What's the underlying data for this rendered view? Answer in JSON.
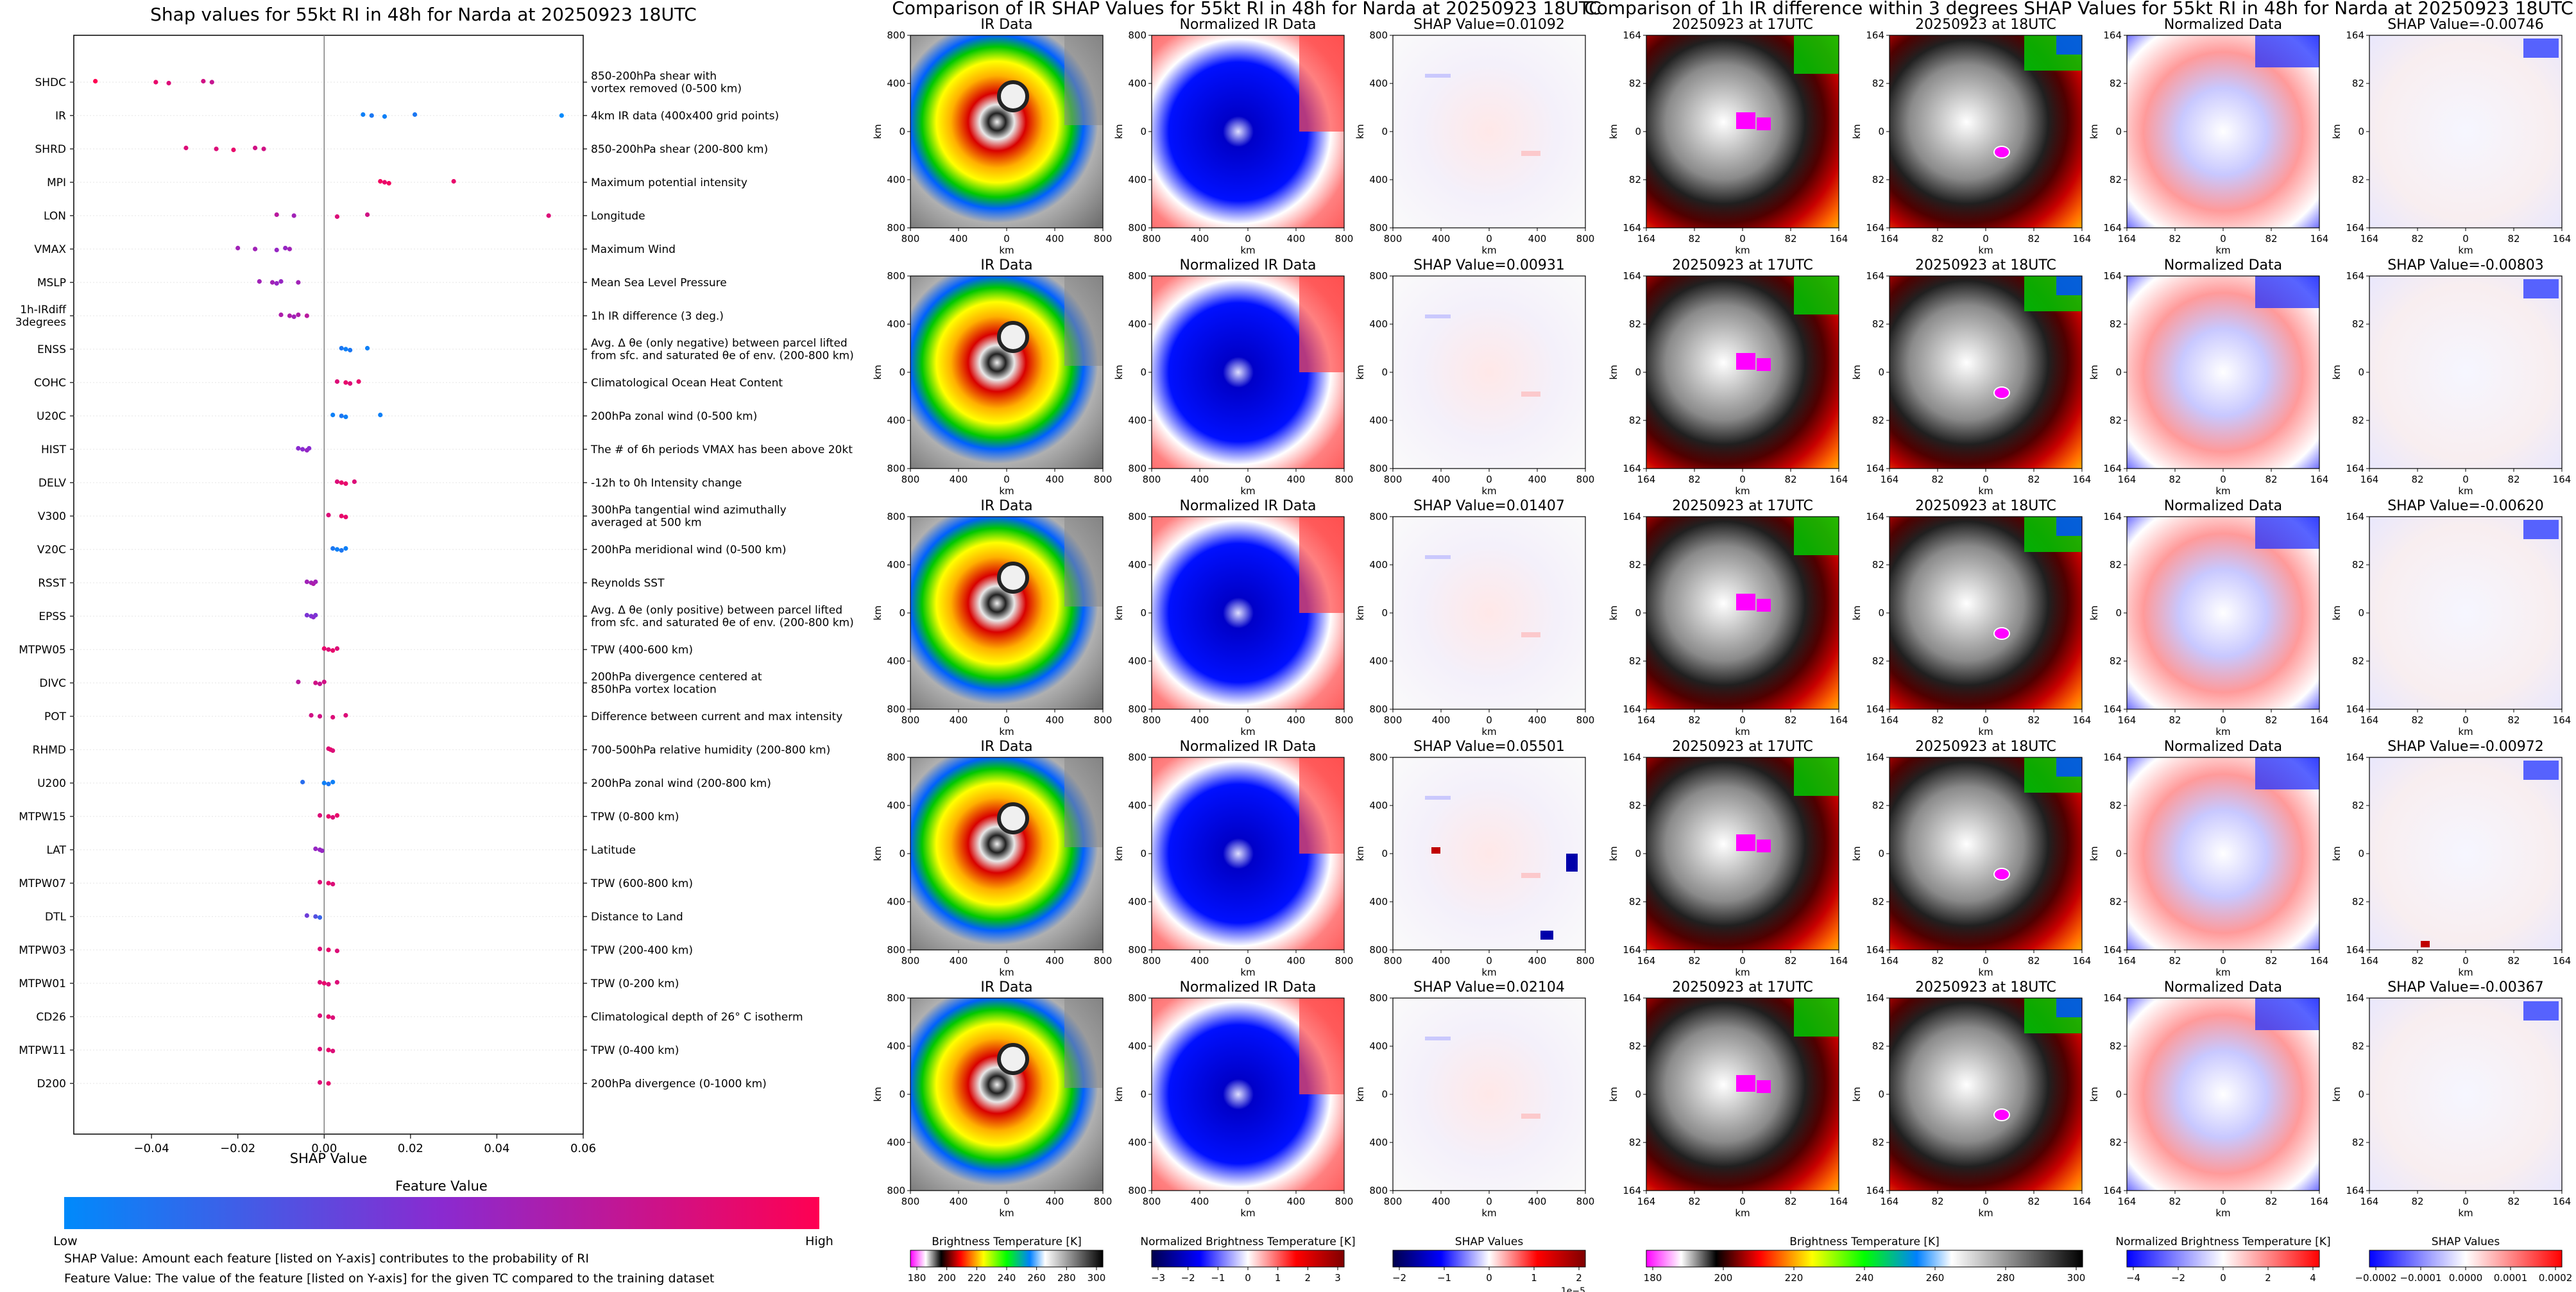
{
  "summary": {
    "title": "Shap values for 55kt RI in 48h for Narda at 20250923 18UTC",
    "xlabel": "SHAP Value",
    "colorbar_title": "Feature Value",
    "colorbar_low": "Low",
    "colorbar_high": "High",
    "note1": "SHAP Value: Amount each feature [listed on Y-axis] contributes to the probability of RI",
    "note2": "Feature Value: The value of the feature [listed on Y-axis] for the given TC compared to the training dataset",
    "colors": {
      "low": "#008afb",
      "mid": "#8a2ad0",
      "high": "#ff0052"
    }
  },
  "chart_data": [
    {
      "type": "scatter",
      "title": "Shap values for 55kt RI in 48h for Narda at 20250923 18UTC",
      "xlabel": "SHAP Value",
      "ylabel": "",
      "xlim": [
        -0.058,
        0.06
      ],
      "xticks": [
        "−0.04",
        "−0.02",
        "0.00",
        "0.02",
        "0.04",
        "0.06"
      ],
      "xtick_values": [
        -0.04,
        -0.02,
        0.0,
        0.02,
        0.04,
        0.06
      ],
      "features": [
        {
          "name": "SHDC",
          "desc": "850-200hPa shear with\nvortex removed (0-500 km)",
          "points": [
            [
              -0.053,
              1.0
            ],
            [
              -0.039,
              0.9
            ],
            [
              -0.036,
              0.85
            ],
            [
              -0.028,
              0.8
            ],
            [
              -0.026,
              0.75
            ]
          ]
        },
        {
          "name": "IR",
          "desc": "4km IR data (400x400 grid points)",
          "points": [
            [
              0.009,
              0.05
            ],
            [
              0.011,
              0.1
            ],
            [
              0.014,
              0.05
            ],
            [
              0.021,
              0.1
            ],
            [
              0.055,
              0.0
            ]
          ]
        },
        {
          "name": "SHRD",
          "desc": "850-200hPa shear (200-800 km)",
          "points": [
            [
              -0.032,
              0.85
            ],
            [
              -0.025,
              0.85
            ],
            [
              -0.021,
              0.9
            ],
            [
              -0.016,
              0.8
            ],
            [
              -0.014,
              0.8
            ]
          ]
        },
        {
          "name": "MPI",
          "desc": "Maximum potential intensity",
          "points": [
            [
              0.013,
              0.95
            ],
            [
              0.014,
              0.9
            ],
            [
              0.015,
              0.95
            ],
            [
              0.03,
              0.9
            ]
          ]
        },
        {
          "name": "LON",
          "desc": "Longitude",
          "points": [
            [
              -0.011,
              0.7
            ],
            [
              -0.007,
              0.6
            ],
            [
              0.003,
              0.85
            ],
            [
              0.01,
              0.8
            ],
            [
              0.052,
              0.85
            ]
          ]
        },
        {
          "name": "VMAX",
          "desc": "Maximum Wind",
          "points": [
            [
              -0.02,
              0.6
            ],
            [
              -0.016,
              0.6
            ],
            [
              -0.011,
              0.55
            ],
            [
              -0.009,
              0.55
            ],
            [
              -0.008,
              0.6
            ]
          ]
        },
        {
          "name": "MSLP",
          "desc": "Mean Sea Level Pressure",
          "points": [
            [
              -0.015,
              0.6
            ],
            [
              -0.012,
              0.6
            ],
            [
              -0.011,
              0.55
            ],
            [
              -0.01,
              0.55
            ],
            [
              -0.006,
              0.6
            ]
          ]
        },
        {
          "name": "1h-IRdiff\n3degrees",
          "desc": "1h IR difference (3 deg.)",
          "points": [
            [
              -0.01,
              0.65
            ],
            [
              -0.008,
              0.65
            ],
            [
              -0.007,
              0.6
            ],
            [
              -0.006,
              0.65
            ],
            [
              -0.004,
              0.7
            ]
          ]
        },
        {
          "name": "ENSS",
          "desc": "Avg. Δ θe (only negative) between parcel lifted\nfrom sfc. and saturated θe of env. (200-800 km)",
          "points": [
            [
              0.004,
              0.1
            ],
            [
              0.005,
              0.05
            ],
            [
              0.006,
              0.1
            ],
            [
              0.01,
              0.05
            ]
          ]
        },
        {
          "name": "COHC",
          "desc": "Climatological Ocean Heat Content",
          "points": [
            [
              0.003,
              0.85
            ],
            [
              0.005,
              0.9
            ],
            [
              0.006,
              0.85
            ],
            [
              0.008,
              0.9
            ]
          ]
        },
        {
          "name": "U20C",
          "desc": "200hPa zonal wind (0-500 km)",
          "points": [
            [
              0.002,
              0.05
            ],
            [
              0.004,
              0.1
            ],
            [
              0.005,
              0.05
            ],
            [
              0.013,
              0.05
            ]
          ]
        },
        {
          "name": "HIST",
          "desc": "The # of 6h periods VMAX has been above 20kt",
          "points": [
            [
              -0.006,
              0.5
            ],
            [
              -0.005,
              0.5
            ],
            [
              -0.004,
              0.55
            ],
            [
              -0.0035,
              0.5
            ]
          ]
        },
        {
          "name": "DELV",
          "desc": "-12h to 0h Intensity change",
          "points": [
            [
              0.003,
              0.85
            ],
            [
              0.004,
              0.9
            ],
            [
              0.005,
              0.9
            ],
            [
              0.007,
              0.85
            ]
          ]
        },
        {
          "name": "V300",
          "desc": "300hPa tangential wind azimuthally\naveraged at 500 km",
          "points": [
            [
              0.001,
              0.85
            ],
            [
              0.004,
              0.9
            ],
            [
              0.005,
              0.9
            ]
          ]
        },
        {
          "name": "V20C",
          "desc": "200hPa meridional wind (0-500 km)",
          "points": [
            [
              0.002,
              0.1
            ],
            [
              0.003,
              0.05
            ],
            [
              0.004,
              0.1
            ],
            [
              0.005,
              0.05
            ]
          ]
        },
        {
          "name": "RSST",
          "desc": "Reynolds SST",
          "points": [
            [
              -0.004,
              0.6
            ],
            [
              -0.003,
              0.6
            ],
            [
              -0.0025,
              0.65
            ],
            [
              -0.002,
              0.6
            ]
          ]
        },
        {
          "name": "EPSS",
          "desc": "Avg. Δ θe (only positive) between parcel lifted\nfrom sfc. and saturated θe of env. (200-800 km)",
          "points": [
            [
              -0.004,
              0.45
            ],
            [
              -0.003,
              0.45
            ],
            [
              -0.0025,
              0.5
            ],
            [
              -0.002,
              0.45
            ]
          ]
        },
        {
          "name": "MTPW05",
          "desc": "TPW (400-600 km)",
          "points": [
            [
              0.0,
              0.9
            ],
            [
              0.001,
              0.85
            ],
            [
              0.002,
              0.9
            ],
            [
              0.003,
              0.85
            ]
          ]
        },
        {
          "name": "DIVC",
          "desc": "200hPa divergence centered at\n850hPa vortex location",
          "points": [
            [
              -0.006,
              0.7
            ],
            [
              -0.002,
              0.8
            ],
            [
              -0.001,
              0.75
            ],
            [
              0.0,
              0.8
            ]
          ]
        },
        {
          "name": "POT",
          "desc": "Difference between current and max intensity",
          "points": [
            [
              -0.003,
              0.8
            ],
            [
              -0.001,
              0.8
            ],
            [
              0.002,
              0.85
            ],
            [
              0.005,
              0.85
            ]
          ]
        },
        {
          "name": "RHMD",
          "desc": "700-500hPa relative humidity (200-800 km)",
          "points": [
            [
              0.001,
              0.85
            ],
            [
              0.0015,
              0.9
            ],
            [
              0.002,
              0.85
            ]
          ]
        },
        {
          "name": "U200",
          "desc": "200hPa zonal wind (200-800 km)",
          "points": [
            [
              -0.005,
              0.15
            ],
            [
              0.0,
              0.05
            ],
            [
              0.001,
              0.1
            ],
            [
              0.002,
              0.05
            ]
          ]
        },
        {
          "name": "MTPW15",
          "desc": "TPW (0-800 km)",
          "points": [
            [
              -0.001,
              0.85
            ],
            [
              0.001,
              0.9
            ],
            [
              0.002,
              0.85
            ],
            [
              0.003,
              0.9
            ]
          ]
        },
        {
          "name": "LAT",
          "desc": "Latitude",
          "points": [
            [
              -0.002,
              0.55
            ],
            [
              -0.001,
              0.55
            ],
            [
              -0.0005,
              0.55
            ]
          ]
        },
        {
          "name": "MTPW07",
          "desc": "TPW (600-800 km)",
          "points": [
            [
              -0.001,
              0.85
            ],
            [
              0.001,
              0.9
            ],
            [
              0.002,
              0.85
            ]
          ]
        },
        {
          "name": "DTL",
          "desc": "Distance to Land",
          "points": [
            [
              -0.004,
              0.4
            ],
            [
              -0.002,
              0.3
            ],
            [
              -0.001,
              0.2
            ]
          ]
        },
        {
          "name": "MTPW03",
          "desc": "TPW (200-400 km)",
          "points": [
            [
              -0.001,
              0.85
            ],
            [
              0.001,
              0.9
            ],
            [
              0.003,
              0.85
            ]
          ]
        },
        {
          "name": "MTPW01",
          "desc": "TPW (0-200 km)",
          "points": [
            [
              -0.001,
              0.85
            ],
            [
              0.0,
              0.9
            ],
            [
              0.001,
              0.85
            ],
            [
              0.003,
              0.85
            ]
          ]
        },
        {
          "name": "CD26",
          "desc": "Climatological depth of 26° C isotherm",
          "points": [
            [
              -0.001,
              0.85
            ],
            [
              0.001,
              0.9
            ],
            [
              0.002,
              0.85
            ]
          ]
        },
        {
          "name": "MTPW11",
          "desc": "TPW (0-400 km)",
          "points": [
            [
              -0.001,
              0.85
            ],
            [
              0.001,
              0.9
            ],
            [
              0.002,
              0.85
            ]
          ]
        },
        {
          "name": "D200",
          "desc": "200hPa divergence (0-1000 km)",
          "points": [
            [
              -0.001,
              0.85
            ],
            [
              0.001,
              0.9
            ]
          ]
        }
      ]
    },
    {
      "type": "heatmap",
      "title": "Comparison of IR SHAP Values for 55kt RI in 48h for Narda at 20250923 18UTC",
      "columns": [
        "IR Data",
        "Normalized IR Data",
        "SHAP Value"
      ],
      "xlabel": "km",
      "ylabel": "km",
      "xticks": [
        "800",
        "400",
        "0",
        "400",
        "800"
      ],
      "yticks": [
        "800",
        "400",
        "0",
        "400",
        "800"
      ],
      "shap_values": [
        "0.01092",
        "0.00931",
        "0.01407",
        "0.05501",
        "0.02104"
      ],
      "shap_prefix": "SHAP Value=",
      "colorbars": [
        {
          "label": "Brightness Temperature [K]",
          "ticks": [
            "180",
            "200",
            "220",
            "240",
            "260",
            "280",
            "300"
          ]
        },
        {
          "label": "Normalized Brightness Temperature [K]",
          "ticks": [
            "−3",
            "−2",
            "−1",
            "0",
            "1",
            "2",
            "3"
          ]
        },
        {
          "label": "SHAP Values",
          "ticks": [
            "−2",
            "−1",
            "0",
            "1",
            "2"
          ],
          "offset": "1e−5"
        }
      ]
    },
    {
      "type": "heatmap",
      "title": "Comparison of 1h IR difference within 3 degrees SHAP Values for 55kt RI in 48h for Narda at 20250923 18UTC",
      "columns": [
        "20250923 at 17UTC",
        "20250923 at 18UTC",
        "Normalized Data"
      ],
      "shap_prefix": "SHAP Value=",
      "shap_values": [
        "-0.00746",
        "-0.00803",
        "-0.00620",
        "-0.00972",
        "-0.00367"
      ],
      "xlabel": "km",
      "ylabel": "km",
      "xticks": [
        "164",
        "82",
        "0",
        "82",
        "164"
      ],
      "yticks": [
        "164",
        "82",
        "0",
        "82",
        "164"
      ],
      "colorbars": [
        {
          "label": "Brightness Temperature [K]",
          "ticks": [
            "180",
            "200",
            "220",
            "240",
            "260",
            "280",
            "300"
          ]
        },
        {
          "label": "Normalized Brightness Temperature [K]",
          "ticks": [
            "−4",
            "−2",
            "0",
            "2",
            "4"
          ]
        },
        {
          "label": "SHAP Values",
          "ticks": [
            "−0.0002",
            "−0.0001",
            "0.0000",
            "0.0001",
            "0.0002"
          ]
        }
      ]
    }
  ]
}
